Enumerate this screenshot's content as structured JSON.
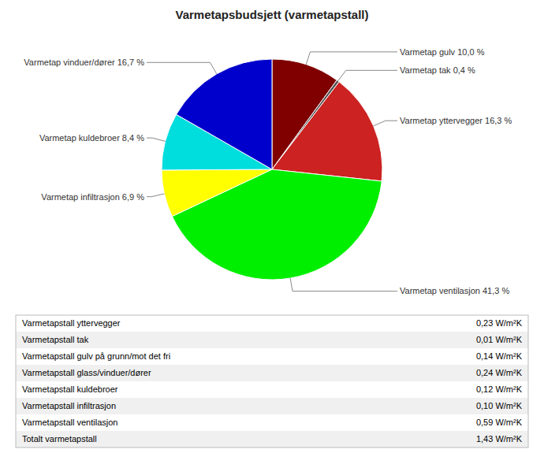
{
  "chart_data": {
    "type": "pie",
    "title": "Varmetapsbudsjett (varmetapstall)",
    "categories": [
      "Varmetap gulv 10,0 %",
      "Varmetap tak 0,4 %",
      "Varmetap yttervegger 16,3 %",
      "Varmetap ventilasjon 41,3 %",
      "Varmetap infiltrasjon 6,9 %",
      "Varmetap kuldebroer 8,4 %",
      "Varmetap vinduer/dører 16,7 %"
    ],
    "values": [
      10.0,
      0.4,
      16.3,
      41.3,
      6.9,
      8.4,
      16.7
    ],
    "colors": [
      "#800000",
      "#505050",
      "#cc2222",
      "#00ee00",
      "#ffff00",
      "#00dddd",
      "#0000cc"
    ],
    "table_rows": [
      [
        "Varmetapstall yttervegger",
        "0,23 W/m²K"
      ],
      [
        "Varmetapstall tak",
        "0,01 W/m²K"
      ],
      [
        "Varmetapstall gulv på grunn/mot det fri",
        "0,14 W/m²K"
      ],
      [
        "Varmetapstall glass/vinduer/dører",
        "0,24 W/m²K"
      ],
      [
        "Varmetapstall kuldebroer",
        "0,12 W/m²K"
      ],
      [
        "Varmetapstall infiltrasjon",
        "0,10 W/m²K"
      ],
      [
        "Varmetapstall ventilasjon",
        "0,59 W/m²K"
      ],
      [
        "Totalt varmetapstall",
        "1,43 W/m²K"
      ]
    ]
  }
}
